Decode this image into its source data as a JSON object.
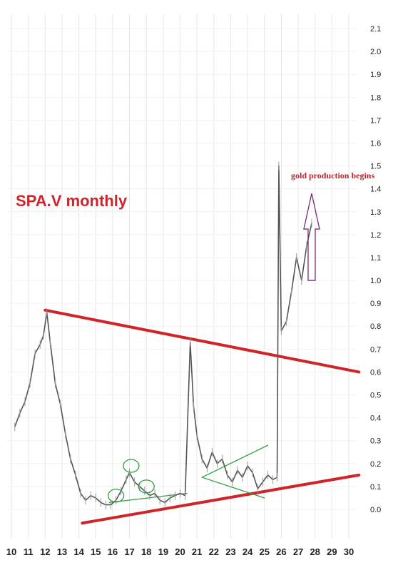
{
  "chart_data": {
    "type": "line",
    "title": "SPA.V monthly",
    "annotation": "gold production begins",
    "x_ticks": [
      "10",
      "11",
      "12",
      "13",
      "14",
      "15",
      "16",
      "17",
      "18",
      "19",
      "20",
      "21",
      "22",
      "23",
      "24",
      "25",
      "26",
      "27",
      "28",
      "29",
      "30"
    ],
    "y_ticks": [
      "0.0",
      "0.1",
      "0.2",
      "0.3",
      "0.4",
      "0.5",
      "0.6",
      "0.7",
      "0.8",
      "0.9",
      "1.0",
      "1.1",
      "1.2",
      "1.3",
      "1.4",
      "1.5",
      "1.6",
      "1.7",
      "1.8",
      "1.9",
      "2.0",
      "2.1"
    ],
    "xlim": [
      10,
      30
    ],
    "ylim": [
      0.0,
      2.1
    ],
    "grid": true,
    "series": [
      {
        "color": "#555555",
        "points": [
          [
            10.2,
            0.36
          ],
          [
            10.5,
            0.42
          ],
          [
            10.8,
            0.47
          ],
          [
            11.1,
            0.55
          ],
          [
            11.4,
            0.68
          ],
          [
            11.7,
            0.72
          ],
          [
            11.9,
            0.76
          ],
          [
            12.1,
            0.86
          ],
          [
            12.3,
            0.73
          ],
          [
            12.6,
            0.55
          ],
          [
            12.9,
            0.46
          ],
          [
            13.2,
            0.33
          ],
          [
            13.5,
            0.22
          ],
          [
            13.8,
            0.15
          ],
          [
            14.1,
            0.07
          ],
          [
            14.4,
            0.04
          ],
          [
            14.7,
            0.06
          ],
          [
            15.0,
            0.05
          ],
          [
            15.3,
            0.03
          ],
          [
            15.6,
            0.02
          ],
          [
            15.9,
            0.02
          ],
          [
            16.2,
            0.04
          ],
          [
            16.5,
            0.08
          ],
          [
            16.8,
            0.13
          ],
          [
            17.0,
            0.16
          ],
          [
            17.3,
            0.12
          ],
          [
            17.6,
            0.1
          ],
          [
            17.9,
            0.08
          ],
          [
            18.2,
            0.06
          ],
          [
            18.5,
            0.07
          ],
          [
            18.8,
            0.04
          ],
          [
            19.1,
            0.03
          ],
          [
            19.4,
            0.05
          ],
          [
            19.7,
            0.06
          ],
          [
            20.0,
            0.07
          ],
          [
            20.3,
            0.06
          ],
          [
            20.6,
            0.73
          ],
          [
            20.8,
            0.45
          ],
          [
            21.0,
            0.32
          ],
          [
            21.3,
            0.22
          ],
          [
            21.6,
            0.18
          ],
          [
            21.9,
            0.25
          ],
          [
            22.2,
            0.2
          ],
          [
            22.5,
            0.22
          ],
          [
            22.8,
            0.15
          ],
          [
            23.1,
            0.12
          ],
          [
            23.4,
            0.17
          ],
          [
            23.7,
            0.14
          ],
          [
            24.0,
            0.19
          ],
          [
            24.3,
            0.16
          ],
          [
            24.6,
            0.09
          ],
          [
            24.9,
            0.12
          ],
          [
            25.2,
            0.15
          ],
          [
            25.5,
            0.13
          ],
          [
            25.75,
            0.14
          ],
          [
            25.85,
            1.5
          ],
          [
            26.0,
            0.78
          ],
          [
            26.3,
            0.82
          ],
          [
            26.6,
            0.95
          ],
          [
            26.9,
            1.1
          ],
          [
            27.2,
            1.0
          ],
          [
            27.5,
            1.15
          ],
          [
            27.8,
            1.25
          ]
        ]
      }
    ],
    "trendlines": [
      {
        "color": "#d0242b",
        "from": [
          12.0,
          0.87
        ],
        "to": [
          30.6,
          0.6
        ]
      },
      {
        "color": "#d0242b",
        "from": [
          14.2,
          -0.06
        ],
        "to": [
          30.6,
          0.15
        ]
      },
      {
        "color": "#2e9e3e",
        "from": [
          15.8,
          0.03
        ],
        "to": [
          20.4,
          0.07
        ]
      },
      {
        "color": "#2e9e3e",
        "from": [
          21.3,
          0.14
        ],
        "to": [
          25.2,
          0.28
        ]
      },
      {
        "color": "#2e9e3e",
        "from": [
          21.3,
          0.14
        ],
        "to": [
          25.0,
          0.05
        ]
      }
    ],
    "circles": [
      {
        "x": 16.2,
        "y": 0.06
      },
      {
        "x": 17.1,
        "y": 0.19
      },
      {
        "x": 18.0,
        "y": 0.1
      }
    ],
    "arrow": {
      "x": 27.8,
      "from": 1.0,
      "to": 1.38
    }
  }
}
